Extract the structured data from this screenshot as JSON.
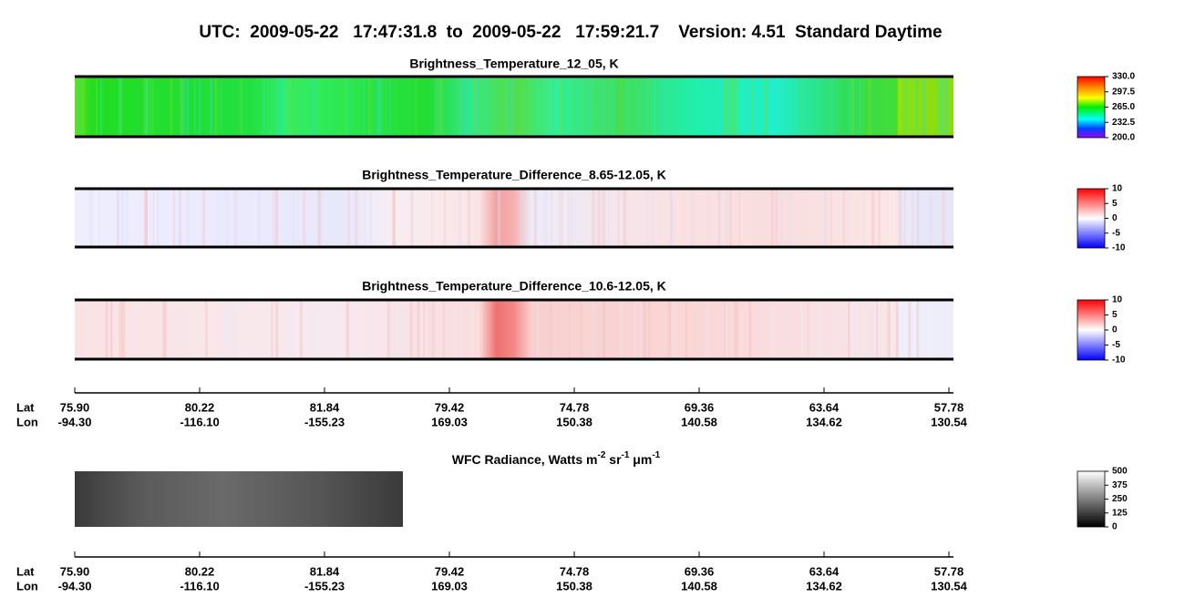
{
  "title": "UTC:  2009-05-22   17:47:31.8  to  2009-05-22   17:59:21.7    Version: 4.51  Standard Daytime",
  "panels": [
    {
      "title": "Brightness_Temperature_12_05, K",
      "colorbar": {
        "lim": [
          200,
          330
        ],
        "ticks": [
          {
            "value": 330,
            "label": "330.0"
          },
          {
            "value": 297.5,
            "label": "297.5"
          },
          {
            "value": 265,
            "label": "265.0"
          },
          {
            "value": 232.5,
            "label": "232.5"
          },
          {
            "value": 200,
            "label": "200.0"
          }
        ]
      }
    },
    {
      "title": "Brightness_Temperature_Difference_8.65-12.05, K",
      "colorbar": {
        "lim": [
          -10,
          10
        ],
        "ticks": [
          10,
          5,
          0,
          -5,
          -10
        ]
      }
    },
    {
      "title": "Brightness_Temperature_Difference_10.6-12.05, K",
      "colorbar": {
        "lim": [
          -10,
          10
        ],
        "ticks": [
          10,
          5,
          0,
          -5,
          -10
        ]
      }
    }
  ],
  "axes": [
    {
      "lat_label": "Lat",
      "lon_label": "Lon",
      "lat": [
        "75.90",
        "80.22",
        "81.84",
        "79.42",
        "74.78",
        "69.36",
        "63.64",
        "57.78"
      ],
      "lon": [
        "-94.30",
        "-116.10",
        "-155.23",
        "169.03",
        "150.38",
        "140.58",
        "134.62",
        "130.54"
      ]
    },
    {
      "lat_label": "Lat",
      "lon_label": "Lon",
      "lat": [
        "75.90",
        "80.22",
        "81.84",
        "79.42",
        "74.78",
        "69.36",
        "63.64",
        "57.78"
      ],
      "lon": [
        "-94.30",
        "-116.10",
        "-155.23",
        "169.03",
        "150.38",
        "140.58",
        "134.62",
        "130.54"
      ]
    }
  ],
  "wfc": {
    "title_parts": [
      "WFC Radiance, Watts m",
      "-2",
      " sr",
      "-1",
      " μm",
      "-1"
    ],
    "colorbar": {
      "lim": [
        0,
        500
      ],
      "ticks": [
        500,
        375,
        250,
        125,
        0
      ]
    }
  }
}
